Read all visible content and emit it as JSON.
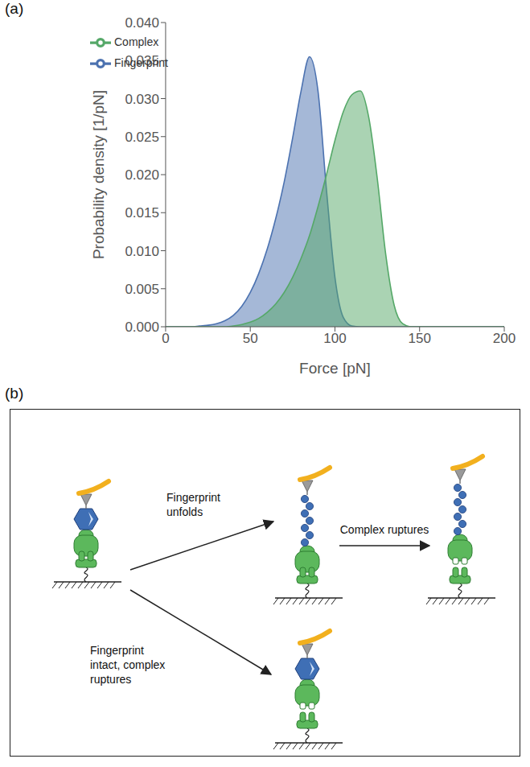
{
  "chart_data": {
    "type": "area",
    "panel_label": "(a)",
    "x_label": "Force [pN]",
    "y_label": "Probability density [1/pN]",
    "x": [
      0,
      5,
      10,
      15,
      20,
      25,
      30,
      35,
      40,
      45,
      50,
      55,
      60,
      65,
      70,
      75,
      80,
      85,
      90,
      95,
      100,
      105,
      110,
      115,
      120,
      125,
      130,
      135,
      140,
      145,
      150,
      155,
      160,
      165,
      170,
      175,
      180,
      185,
      190,
      195,
      200
    ],
    "series": [
      {
        "name": "Fingerprint",
        "color": "#4c72b0",
        "values": [
          0,
          0,
          0,
          0,
          0.0001,
          0.0002,
          0.0004,
          0.0008,
          0.0015,
          0.0027,
          0.0045,
          0.007,
          0.0102,
          0.0142,
          0.019,
          0.0248,
          0.031,
          0.0355,
          0.031,
          0.018,
          0.0065,
          0.0012,
          0.0001,
          0,
          0,
          0,
          0,
          0,
          0,
          0,
          0,
          0,
          0,
          0,
          0,
          0,
          0,
          0,
          0,
          0,
          0
        ]
      },
      {
        "name": "Complex",
        "color": "#55a868",
        "values": [
          0,
          0,
          0,
          0,
          0,
          0,
          0,
          0,
          0.0001,
          0.0003,
          0.0006,
          0.0011,
          0.0019,
          0.003,
          0.0045,
          0.0065,
          0.009,
          0.012,
          0.0158,
          0.02,
          0.0245,
          0.0283,
          0.0305,
          0.031,
          0.0275,
          0.0195,
          0.0095,
          0.0028,
          0.0004,
          0,
          0,
          0,
          0,
          0,
          0,
          0,
          0,
          0,
          0,
          0,
          0
        ]
      }
    ],
    "xlim": [
      0,
      200
    ],
    "xticks": [
      0,
      50,
      100,
      150,
      200
    ],
    "ylim": [
      0,
      0.04
    ],
    "yticks": [
      {
        "value": 0,
        "label": "0.000"
      },
      {
        "value": 0.005,
        "label": "0.005"
      },
      {
        "value": 0.01,
        "label": "0.010"
      },
      {
        "value": 0.015,
        "label": "0.015"
      },
      {
        "value": 0.02,
        "label": "0.020"
      },
      {
        "value": 0.025,
        "label": "0.025"
      },
      {
        "value": 0.03,
        "label": "0.030"
      },
      {
        "value": 0.035,
        "label": "0.035"
      },
      {
        "value": 0.04,
        "label": "0.040"
      }
    ],
    "legend": "upper left",
    "grid": false
  },
  "diagram": {
    "panel_label": "(b)",
    "labels": {
      "fingerprint_unfolds": "Fingerprint unfolds",
      "complex_ruptures": "Complex ruptures",
      "fingerprint_intact_complex_ruptures": "Fingerprint intact, complex ruptures"
    }
  }
}
